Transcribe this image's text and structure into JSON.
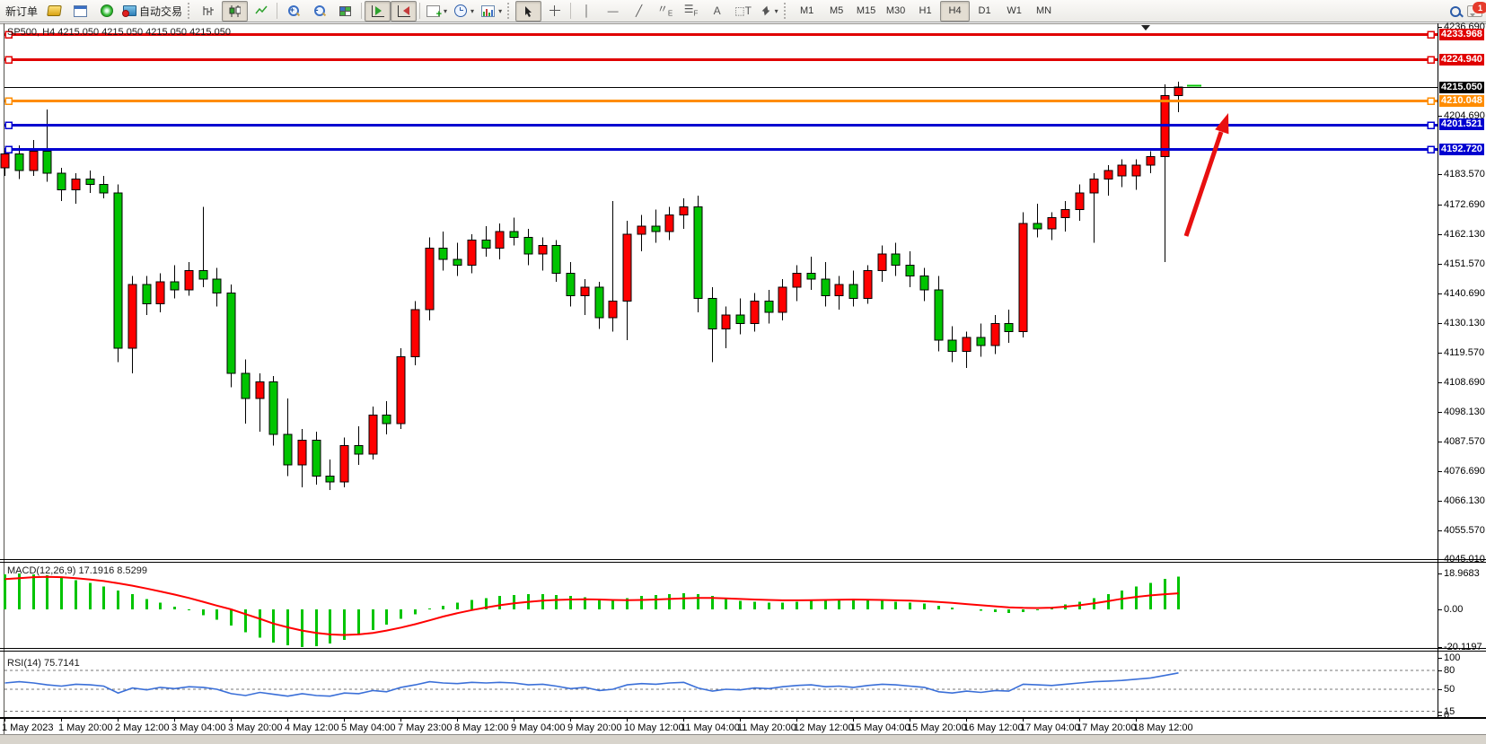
{
  "toolbar": {
    "new_order_label": "新订单",
    "auto_trading_label": "自动交易",
    "timeframes": [
      "M1",
      "M5",
      "M15",
      "M30",
      "H1",
      "H4",
      "D1",
      "W1",
      "MN"
    ],
    "active_timeframe": "H4",
    "notification_badge": "1",
    "icon_names": [
      "history-center-icon",
      "new-window-icon",
      "signals-icon",
      "autotrading-icon",
      "bar-chart-icon",
      "candlestick-chart-icon",
      "line-chart-icon",
      "zoom-in-icon",
      "zoom-out-icon",
      "tile-windows-icon",
      "auto-scroll-icon",
      "chart-shift-icon",
      "add-indicator-icon",
      "period-clock-icon",
      "template-icon",
      "cursor-icon",
      "crosshair-icon",
      "vertical-line-icon",
      "horizontal-line-icon",
      "trendline-icon",
      "equidistant-channel-icon",
      "fibonacci-icon",
      "text-icon",
      "text-label-icon",
      "arrows-icon",
      "search-icon",
      "chat-bubble-icon"
    ]
  },
  "chart": {
    "title_text": "SP500, H4  4215.050 4215.050 4215.050 4215.050",
    "symbol": "SP500",
    "period": "H4",
    "colors": {
      "up_candle": "#ff0000",
      "down_candle": "#00c400",
      "candle_border": "#000000",
      "bid_line": "#000000",
      "ask_dash": "#00c400",
      "red_level": "#e00000",
      "orange_level": "#ff8c00",
      "blue_level": "#0000d0",
      "arrow": "#e81010"
    },
    "price_lines": [
      {
        "label": "4233.968",
        "value": 4233.968,
        "color": "#e00000",
        "kind": "horizontal-line"
      },
      {
        "label": "4224.940",
        "value": 4224.94,
        "color": "#e00000",
        "kind": "horizontal-line"
      },
      {
        "label": "4215.050",
        "value": 4215.05,
        "color": "#000000",
        "kind": "bid-price"
      },
      {
        "label": "4210.048",
        "value": 4210.048,
        "color": "#ff8c00",
        "kind": "horizontal-line"
      },
      {
        "label": "4201.521",
        "value": 4201.521,
        "color": "#0000d0",
        "kind": "horizontal-line"
      },
      {
        "label": "4192.720",
        "value": 4192.72,
        "color": "#0000d0",
        "kind": "horizontal-line"
      }
    ],
    "axis_ticks": [
      {
        "label": "4236.690",
        "value": 4236.69
      },
      {
        "label": "4204.690",
        "value": 4204.69
      },
      {
        "label": "4183.570",
        "value": 4183.57
      },
      {
        "label": "4172.690",
        "value": 4172.69
      },
      {
        "label": "4162.130",
        "value": 4162.13
      },
      {
        "label": "4151.570",
        "value": 4151.57
      },
      {
        "label": "4140.690",
        "value": 4140.69
      },
      {
        "label": "4130.130",
        "value": 4130.13
      },
      {
        "label": "4119.570",
        "value": 4119.57
      },
      {
        "label": "4108.690",
        "value": 4108.69
      },
      {
        "label": "4098.130",
        "value": 4098.13
      },
      {
        "label": "4087.570",
        "value": 4087.57
      },
      {
        "label": "4076.690",
        "value": 4076.69
      },
      {
        "label": "4066.130",
        "value": 4066.13
      },
      {
        "label": "4055.570",
        "value": 4055.57
      },
      {
        "label": "4045.010",
        "value": 4045.01
      }
    ],
    "time_labels": [
      "1 May 2023",
      "1 May 20:00",
      "2 May 12:00",
      "3 May 04:00",
      "3 May 20:00",
      "4 May 12:00",
      "5 May 04:00",
      "7 May 23:00",
      "8 May 12:00",
      "9 May 04:00",
      "9 May 20:00",
      "10 May 12:00",
      "11 May 04:00",
      "11 May 20:00",
      "12 May 12:00",
      "15 May 04:00",
      "15 May 20:00",
      "16 May 12:00",
      "17 May 04:00",
      "17 May 20:00",
      "18 May 12:00"
    ],
    "candles": [
      [
        4186,
        4193,
        4183,
        4191
      ],
      [
        4191,
        4194,
        4182,
        4185
      ],
      [
        4185,
        4196,
        4183,
        4192
      ],
      [
        4192,
        4207,
        4181,
        4184
      ],
      [
        4184,
        4186,
        4174,
        4178
      ],
      [
        4178,
        4184,
        4173,
        4182
      ],
      [
        4182,
        4185,
        4177,
        4180
      ],
      [
        4180,
        4183,
        4175,
        4177
      ],
      [
        4177,
        4180,
        4116,
        4121
      ],
      [
        4121,
        4147,
        4112,
        4144
      ],
      [
        4144,
        4147,
        4133,
        4137
      ],
      [
        4137,
        4148,
        4134,
        4145
      ],
      [
        4145,
        4151,
        4139,
        4142
      ],
      [
        4142,
        4152,
        4140,
        4149
      ],
      [
        4149,
        4172,
        4143,
        4146
      ],
      [
        4146,
        4150,
        4136,
        4141
      ],
      [
        4141,
        4144,
        4107,
        4112
      ],
      [
        4112,
        4117,
        4094,
        4103
      ],
      [
        4103,
        4112,
        4091,
        4109
      ],
      [
        4109,
        4111,
        4086,
        4090
      ],
      [
        4090,
        4103,
        4075,
        4079
      ],
      [
        4079,
        4092,
        4071,
        4088
      ],
      [
        4088,
        4091,
        4072,
        4075
      ],
      [
        4075,
        4081,
        4070,
        4073
      ],
      [
        4073,
        4089,
        4071,
        4086
      ],
      [
        4086,
        4093,
        4079,
        4083
      ],
      [
        4083,
        4100,
        4081,
        4097
      ],
      [
        4097,
        4102,
        4090,
        4094
      ],
      [
        4094,
        4121,
        4092,
        4118
      ],
      [
        4118,
        4138,
        4115,
        4135
      ],
      [
        4135,
        4161,
        4131,
        4157
      ],
      [
        4157,
        4163,
        4149,
        4153
      ],
      [
        4153,
        4159,
        4147,
        4151
      ],
      [
        4151,
        4162,
        4148,
        4160
      ],
      [
        4160,
        4165,
        4154,
        4157
      ],
      [
        4157,
        4166,
        4153,
        4163
      ],
      [
        4163,
        4168,
        4158,
        4161
      ],
      [
        4161,
        4164,
        4151,
        4155
      ],
      [
        4155,
        4161,
        4149,
        4158
      ],
      [
        4158,
        4160,
        4145,
        4148
      ],
      [
        4148,
        4152,
        4136,
        4140
      ],
      [
        4140,
        4146,
        4133,
        4143
      ],
      [
        4143,
        4145,
        4128,
        4132
      ],
      [
        4132,
        4174,
        4127,
        4138
      ],
      [
        4138,
        4167,
        4124,
        4162
      ],
      [
        4162,
        4169,
        4156,
        4165
      ],
      [
        4165,
        4171,
        4159,
        4163
      ],
      [
        4163,
        4172,
        4160,
        4169
      ],
      [
        4169,
        4175,
        4164,
        4172
      ],
      [
        4172,
        4176,
        4134,
        4139
      ],
      [
        4139,
        4143,
        4116,
        4128
      ],
      [
        4128,
        4136,
        4121,
        4133
      ],
      [
        4133,
        4139,
        4126,
        4130
      ],
      [
        4130,
        4141,
        4127,
        4138
      ],
      [
        4138,
        4142,
        4130,
        4134
      ],
      [
        4134,
        4146,
        4131,
        4143
      ],
      [
        4143,
        4151,
        4138,
        4148
      ],
      [
        4148,
        4154,
        4142,
        4146
      ],
      [
        4146,
        4152,
        4136,
        4140
      ],
      [
        4140,
        4147,
        4135,
        4144
      ],
      [
        4144,
        4149,
        4136,
        4139
      ],
      [
        4139,
        4151,
        4137,
        4149
      ],
      [
        4149,
        4158,
        4145,
        4155
      ],
      [
        4155,
        4159,
        4147,
        4151
      ],
      [
        4151,
        4156,
        4143,
        4147
      ],
      [
        4147,
        4150,
        4138,
        4142
      ],
      [
        4142,
        4147,
        4120,
        4124
      ],
      [
        4124,
        4129,
        4116,
        4120
      ],
      [
        4120,
        4127,
        4114,
        4125
      ],
      [
        4125,
        4130,
        4118,
        4122
      ],
      [
        4122,
        4133,
        4119,
        4130
      ],
      [
        4130,
        4135,
        4123,
        4127
      ],
      [
        4127,
        4170,
        4125,
        4166
      ],
      [
        4166,
        4173,
        4161,
        4164
      ],
      [
        4164,
        4170,
        4160,
        4168
      ],
      [
        4168,
        4174,
        4163,
        4171
      ],
      [
        4171,
        4180,
        4167,
        4177
      ],
      [
        4177,
        4184,
        4159,
        4182
      ],
      [
        4182,
        4187,
        4176,
        4185
      ],
      [
        4183,
        4189,
        4179,
        4187
      ],
      [
        4183,
        4189,
        4178,
        4187
      ],
      [
        4187,
        4192,
        4184,
        4190
      ],
      [
        4190,
        4216,
        4152,
        4212
      ],
      [
        4212,
        4217,
        4206,
        4215
      ]
    ]
  },
  "macd": {
    "label": "MACD(12,26,9) 17.1916 8.5299",
    "axis": [
      {
        "label": "18.9683",
        "value": 18.9683
      },
      {
        "label": "0.00",
        "value": 0
      },
      {
        "label": "-20.1197",
        "value": -20.1197
      }
    ],
    "histogram": [
      18.5,
      19,
      18.5,
      18,
      17,
      15.5,
      14,
      12,
      10,
      8,
      5.5,
      3.5,
      1.5,
      -0.5,
      -3,
      -5.5,
      -8.5,
      -12,
      -15,
      -17.5,
      -19,
      -20,
      -19.5,
      -18,
      -16,
      -13.5,
      -11,
      -8,
      -5,
      -2.5,
      0.5,
      2,
      3.5,
      5,
      6,
      7,
      7.5,
      8,
      8,
      7.5,
      7,
      6.5,
      5.5,
      5,
      6,
      7,
      7.5,
      8,
      8.5,
      8,
      7,
      5.5,
      4.5,
      4,
      3.5,
      3.5,
      4,
      4.5,
      5,
      5.5,
      5.5,
      5,
      4.5,
      4,
      3.5,
      3,
      2,
      1,
      0,
      -0.8,
      -1.5,
      -2,
      -1.5,
      -0.5,
      1,
      2.5,
      4,
      6,
      8,
      10,
      12,
      14,
      16,
      17.2
    ],
    "signal": [
      16,
      16.5,
      17,
      17.2,
      17,
      16.5,
      15.8,
      15,
      13.8,
      12.5,
      11,
      9.5,
      7.8,
      6,
      4,
      2,
      0,
      -2.5,
      -5,
      -7.5,
      -9.5,
      -11.2,
      -12.4,
      -13.2,
      -13.5,
      -13.2,
      -12.4,
      -11.2,
      -9.6,
      -7.8,
      -5.8,
      -3.8,
      -2,
      -0.4,
      1,
      2.2,
      3.2,
      4,
      4.6,
      5,
      5.2,
      5.3,
      5.2,
      5,
      4.9,
      5,
      5.2,
      5.5,
      5.8,
      6,
      6,
      5.8,
      5.5,
      5.2,
      5,
      4.8,
      4.8,
      4.9,
      5,
      5.1,
      5.2,
      5.1,
      5,
      4.8,
      4.6,
      4.3,
      3.9,
      3.4,
      2.8,
      2.2,
      1.6,
      1.1,
      0.8,
      0.7,
      0.9,
      1.4,
      2.2,
      3.2,
      4.4,
      5.6,
      6.6,
      7.4,
      8,
      8.5
    ]
  },
  "rsi": {
    "label": "RSI(14) 75.7141",
    "axis": [
      {
        "label": "100",
        "value": 100
      },
      {
        "label": "80",
        "value": 80
      },
      {
        "label": "50",
        "value": 50
      },
      {
        "label": "15",
        "value": 15
      },
      {
        "label": "0",
        "value": 0
      }
    ],
    "levels": [
      80,
      50,
      15
    ],
    "values": [
      60,
      62,
      60,
      57,
      55,
      58,
      57,
      55,
      44,
      52,
      49,
      53,
      51,
      54,
      53,
      50,
      43,
      40,
      45,
      42,
      39,
      43,
      40,
      39,
      44,
      43,
      48,
      46,
      53,
      57,
      62,
      60,
      59,
      61,
      60,
      61,
      60,
      57,
      58,
      55,
      51,
      53,
      48,
      50,
      57,
      59,
      58,
      60,
      61,
      52,
      47,
      50,
      49,
      52,
      51,
      54,
      56,
      57,
      54,
      55,
      53,
      56,
      58,
      57,
      55,
      53,
      46,
      44,
      47,
      45,
      48,
      47,
      58,
      57,
      56,
      58,
      60,
      62,
      63,
      64,
      66,
      68,
      72,
      76
    ]
  }
}
